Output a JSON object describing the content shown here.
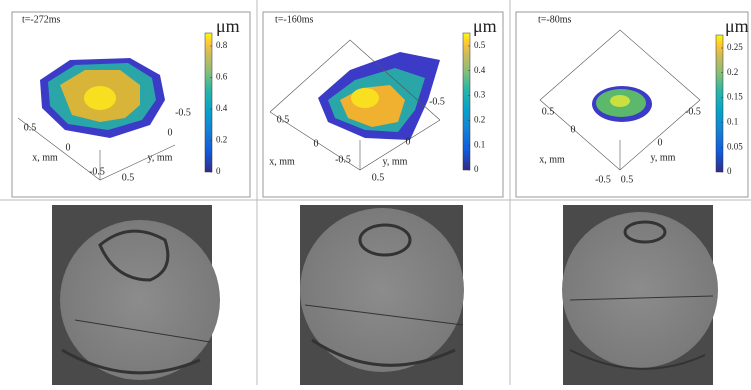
{
  "panels": [
    {
      "time": "t=-272ms",
      "unit": "μm",
      "colorbar_ticks": [
        "0.8",
        "0.6",
        "0.4",
        "0.2",
        "0"
      ],
      "x_label": "x, mm",
      "y_label": "y, mm",
      "x_ticks": [
        "0.5",
        "0",
        "-0.5"
      ],
      "y_ticks": [
        "-0.5",
        "0",
        "0.5"
      ]
    },
    {
      "time": "t=-160ms",
      "unit": "μm",
      "colorbar_ticks": [
        "0.5",
        "0.4",
        "0.3",
        "0.2",
        "0.1",
        "0"
      ],
      "x_label": "x, mm",
      "y_label": "y, mm",
      "x_ticks": [
        "0.5",
        "0",
        "-0.5"
      ],
      "y_ticks": [
        "-0.5",
        "0",
        "0.5"
      ]
    },
    {
      "time": "t=-80ms",
      "unit": "μm",
      "colorbar_ticks": [
        "0.25",
        "0.2",
        "0.15",
        "0.1",
        "0.05",
        "0"
      ],
      "x_label": "x, mm",
      "y_label": "y, mm",
      "x_ticks": [
        "0.5",
        "0",
        "-0.5"
      ],
      "y_ticks": [
        "-0.5",
        "0",
        "0.5"
      ]
    }
  ]
}
